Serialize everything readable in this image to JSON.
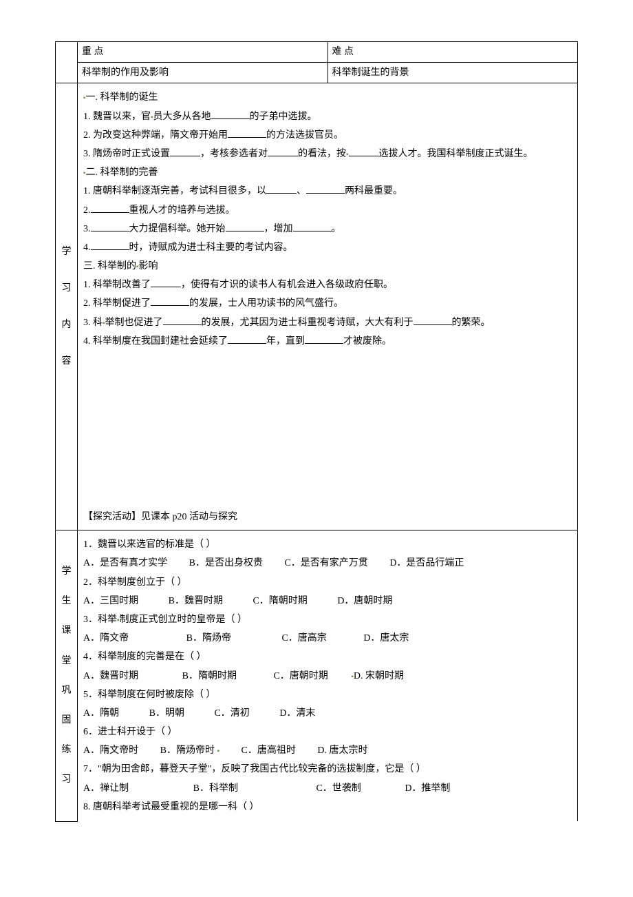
{
  "header": {
    "keypoint_label": "重  点",
    "difficulty_label": "难  点",
    "keypoint_value": "科举制的作用及影响",
    "difficulty_value": "科举制诞生的背景"
  },
  "side_labels": {
    "study": [
      "学",
      "习",
      "内",
      "容"
    ],
    "practice": [
      "学",
      "生",
      "课",
      "堂",
      "巩",
      "固",
      "练",
      "习"
    ]
  },
  "study": {
    "s1_title": "一. 科举制的诞生",
    "s1_l1a": "1. 魏晋以来，官",
    "s1_l1b": "员大多从各地",
    "s1_l1c": "的子弟中选拔。",
    "s1_l2a": "2. 为改变这种弊端，隋文帝开始用",
    "s1_l2b": "的方法选拔官员。",
    "s1_l3a": "3. 隋炀帝时正式设置",
    "s1_l3b": "，考核参选者对",
    "s1_l3c": "的看法，按",
    "s1_l3d": "选拔人才。我国科举制度正式诞生。",
    "s2_title": "二. 科举制的完善",
    "s2_l1a": "1. 唐朝科举制逐渐完善，考试科目很多，以",
    "s2_l1b": "、",
    "s2_l1c": "两科最重要。",
    "s2_l2a": "2.",
    "s2_l2b": "重视人才的培养与选拔。",
    "s2_l3a": "3.",
    "s2_l3b": "大力提倡科举。她开始",
    "s2_l3c": "，增加",
    "s2_l3d": "。",
    "s2_l4a": "4.",
    "s2_l4b": "时，诗赋成为进士科主要的考试内容。",
    "s3_title": "三. 科举制的",
    "s3_title_b": "影响",
    "s3_l1a": "1. 科举制改善了",
    "s3_l1b": "，使得有才识的读书人有机会进入各级政府任职。",
    "s3_l2a": "2. 科举制促进了",
    "s3_l2b": "的发展，士人用功读书的风气盛行。",
    "s3_l3a": "3. 科",
    "s3_l3b": "举制也促进了",
    "s3_l3c": "的发展，尤其因为进士科重视考诗赋，大大有利于",
    "s3_l3d": "的繁荣。",
    "s3_l4a": "4. 科举制度在我国封建社会延续了",
    "s3_l4b": "年，直到",
    "s3_l4c": "才被废除。",
    "inquiry": "【探究活动】见课本 p20 活动与探究"
  },
  "quiz": {
    "q1": "1．魏晋以来选官的标准是（    ）",
    "q1a": "A．是否有真才实学",
    "q1b": "B．是否出身权贵",
    "q1c": "C．是否有家产万贯",
    "q1d": "D．是否品行端正",
    "q2": "2．科举制度创立于（    ）",
    "q2a": "A．三国时期",
    "q2b": "B．魏晋时期",
    "q2c": "C．隋朝时期",
    "q2d": "D．唐朝时期",
    "q3": "3．科举",
    "q3x": "制度正式创立时的皇帝是（    ）",
    "q3a": "A．隋文帝",
    "q3b": "B．隋炀帝",
    "q3c": "C．唐高宗",
    "q3d": "D．唐太宗",
    "q4": "4．科举制度的完善是在（    ）",
    "q4a": "A．魏晋时期",
    "q4b": "B．隋朝时期",
    "q4c": "C．唐朝时期",
    "q4d": "D. 宋朝时期",
    "q5": "5．科举制度在何时被废除（    ）",
    "q5a": "A．隋朝",
    "q5b": "B．明朝",
    "q5c": "C．清初",
    "q5d": "D．清末",
    "q6": "6．进士科开设于（    ）",
    "q6a": "A．隋文帝时",
    "q6b": "B．隋炀帝时",
    "q6c": "C．唐高祖时",
    "q6d": "D. 唐太宗时",
    "q7": "7．\"朝为田舍郎，暮登天子堂\"，反映了我国古代比较完备的选拔制度，它是（    ）",
    "q7a": "A．禅让制",
    "q7b": "B．科举制",
    "q7c": "C．世袭制",
    "q7d": "D．推举制",
    "q8": "8. 唐朝科举考试最受重视的是哪一科（        ）"
  }
}
